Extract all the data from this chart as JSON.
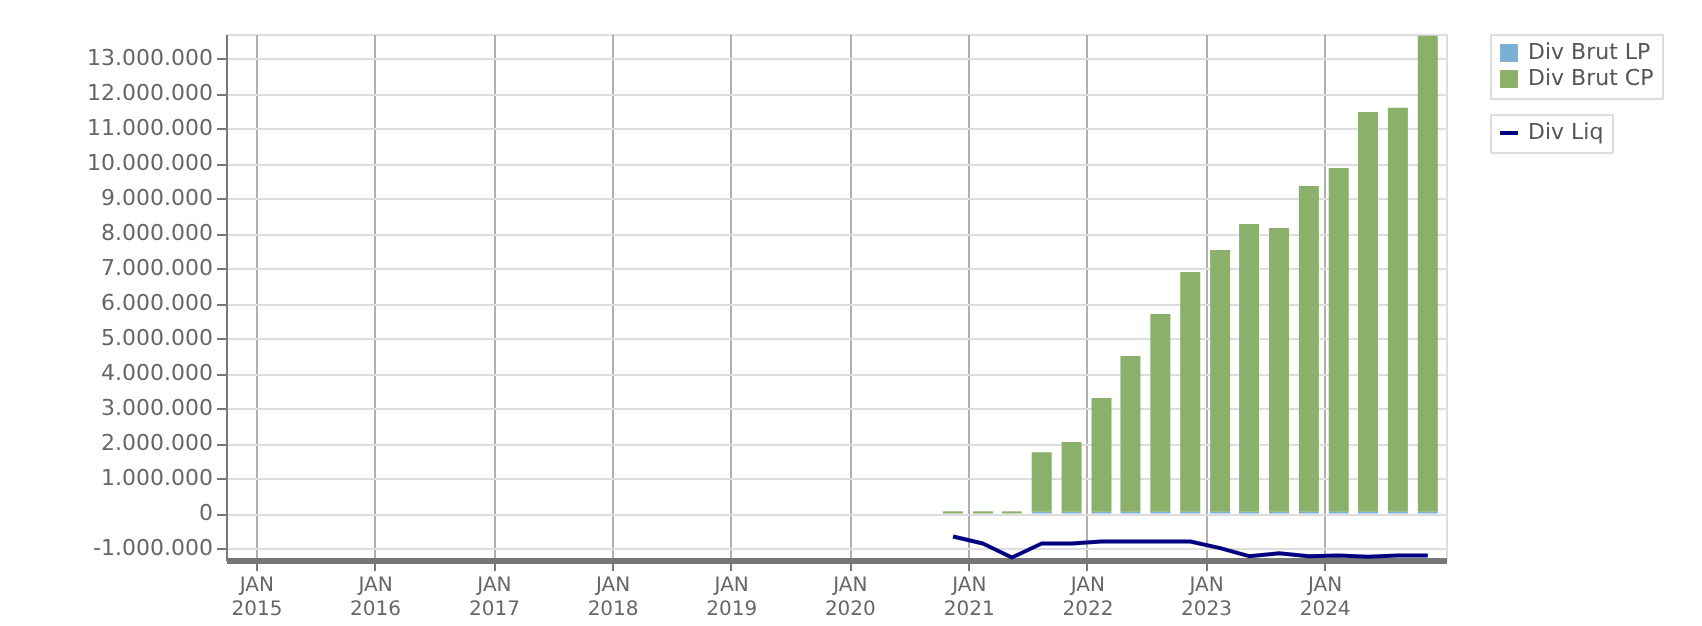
{
  "chart_data": {
    "type": "bar",
    "stacked": true,
    "x": [
      "2020-11-15",
      "2021-02-15",
      "2021-05-15",
      "2021-08-15",
      "2021-11-15",
      "2022-02-15",
      "2022-05-15",
      "2022-08-15",
      "2022-11-15",
      "2023-02-15",
      "2023-05-15",
      "2023-08-15",
      "2023-11-15",
      "2024-02-15",
      "2024-05-15",
      "2024-08-15",
      "2024-11-15"
    ],
    "series": [
      {
        "name": "Div Brut LP",
        "color": "#7bafd4",
        "values": [
          0,
          0,
          0,
          50000,
          50000,
          50000,
          50000,
          50000,
          50000,
          50000,
          50000,
          50000,
          50000,
          50000,
          50000,
          50000,
          50000
        ]
      },
      {
        "name": "Div Brut CP",
        "color": "#8ab06a",
        "values": [
          60000,
          60000,
          60000,
          1700000,
          1990000,
          3250000,
          4450000,
          5650000,
          6850000,
          7480000,
          8220000,
          8110000,
          9310000,
          9820000,
          11420000,
          11540000,
          13600000
        ]
      },
      {
        "name": "Div Liq",
        "type": "line",
        "color": "#000080",
        "values": [
          -660000,
          -860000,
          -1260000,
          -860000,
          -860000,
          -800000,
          -800000,
          -800000,
          -800000,
          -990000,
          -1220000,
          -1140000,
          -1220000,
          -1200000,
          -1240000,
          -1200000,
          -1200000
        ]
      }
    ],
    "xlim": [
      "2014-10-01",
      "2025-01-10"
    ],
    "xticks": [
      {
        "value": "2015-01-01",
        "label": "JAN 2015"
      },
      {
        "value": "2016-01-01",
        "label": "JAN 2016"
      },
      {
        "value": "2017-01-01",
        "label": "JAN 2017"
      },
      {
        "value": "2018-01-01",
        "label": "JAN 2018"
      },
      {
        "value": "2019-01-01",
        "label": "JAN 2019"
      },
      {
        "value": "2020-01-01",
        "label": "JAN 2020"
      },
      {
        "value": "2021-01-01",
        "label": "JAN 2021"
      },
      {
        "value": "2022-01-01",
        "label": "JAN 2022"
      },
      {
        "value": "2023-01-01",
        "label": "JAN 2023"
      },
      {
        "value": "2024-01-01",
        "label": "JAN 2024"
      }
    ],
    "ylim": [
      -1330000,
      13700000
    ],
    "yticks": [
      {
        "value": -1000000,
        "label": "-1.000.000"
      },
      0,
      {
        "value": 1000000,
        "label": "1.000.000"
      },
      {
        "value": 2000000,
        "label": "2.000.000"
      },
      {
        "value": 3000000,
        "label": "3.000.000"
      },
      {
        "value": 4000000,
        "label": "4.000.000"
      },
      {
        "value": 5000000,
        "label": "5.000.000"
      },
      {
        "value": 6000000,
        "label": "6.000.000"
      },
      {
        "value": 7000000,
        "label": "7.000.000"
      },
      {
        "value": 8000000,
        "label": "8.000.000"
      },
      {
        "value": 9000000,
        "label": "9.000.000"
      },
      {
        "value": 10000000,
        "label": "10.000.000"
      },
      {
        "value": 11000000,
        "label": "11.000.000"
      },
      {
        "value": 12000000,
        "label": "12.000.000"
      },
      {
        "value": 13000000,
        "label": "13.000.000"
      }
    ],
    "grid": true,
    "legend": "top right",
    "marker": "none",
    "line_style": "solid"
  }
}
